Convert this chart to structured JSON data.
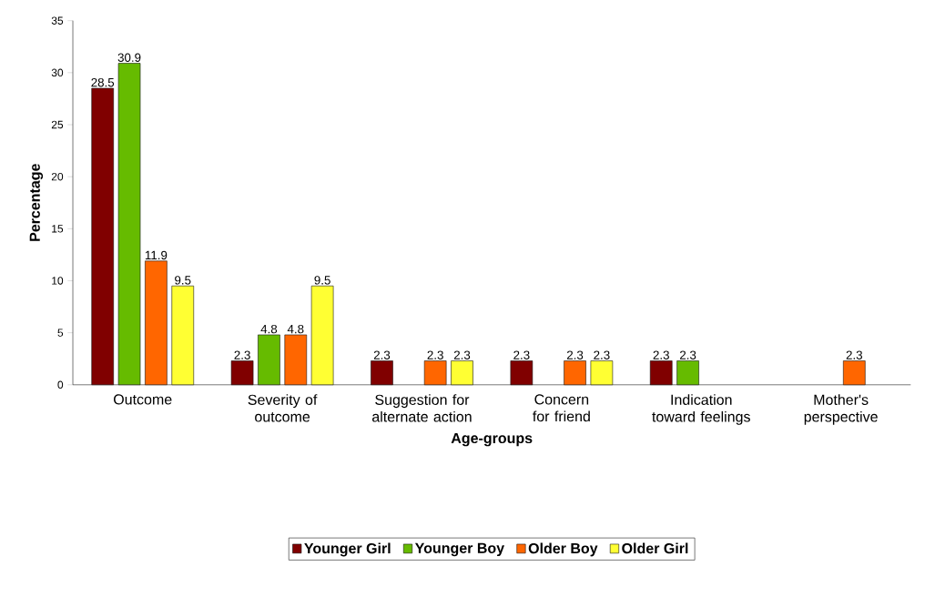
{
  "chart_data": {
    "type": "bar",
    "xlabel": "Age-groups",
    "ylabel": "Percentage",
    "categories": [
      "Outcome",
      "Severity of outcome",
      "Suggestion for alternate action",
      "Concern for friend",
      "Indication toward feelings",
      "Mother's perspective"
    ],
    "series": [
      {
        "name": "Younger Girl",
        "color": "#800000",
        "values": [
          28.5,
          2.3,
          2.3,
          2.3,
          2.3,
          null
        ]
      },
      {
        "name": "Younger Boy",
        "color": "#66bb00",
        "values": [
          30.9,
          4.8,
          null,
          null,
          2.3,
          null
        ]
      },
      {
        "name": "Older Boy",
        "color": "#ff6600",
        "values": [
          11.9,
          4.8,
          2.3,
          2.3,
          null,
          2.3
        ]
      },
      {
        "name": "Older Girl",
        "color": "#ffff33",
        "values": [
          9.5,
          9.5,
          2.3,
          2.3,
          null,
          null
        ]
      }
    ],
    "ylim": [
      0,
      35
    ],
    "yticks": [
      0,
      5,
      10,
      15,
      20,
      25,
      30,
      35
    ],
    "data_labels": true,
    "legend": "bottom"
  }
}
